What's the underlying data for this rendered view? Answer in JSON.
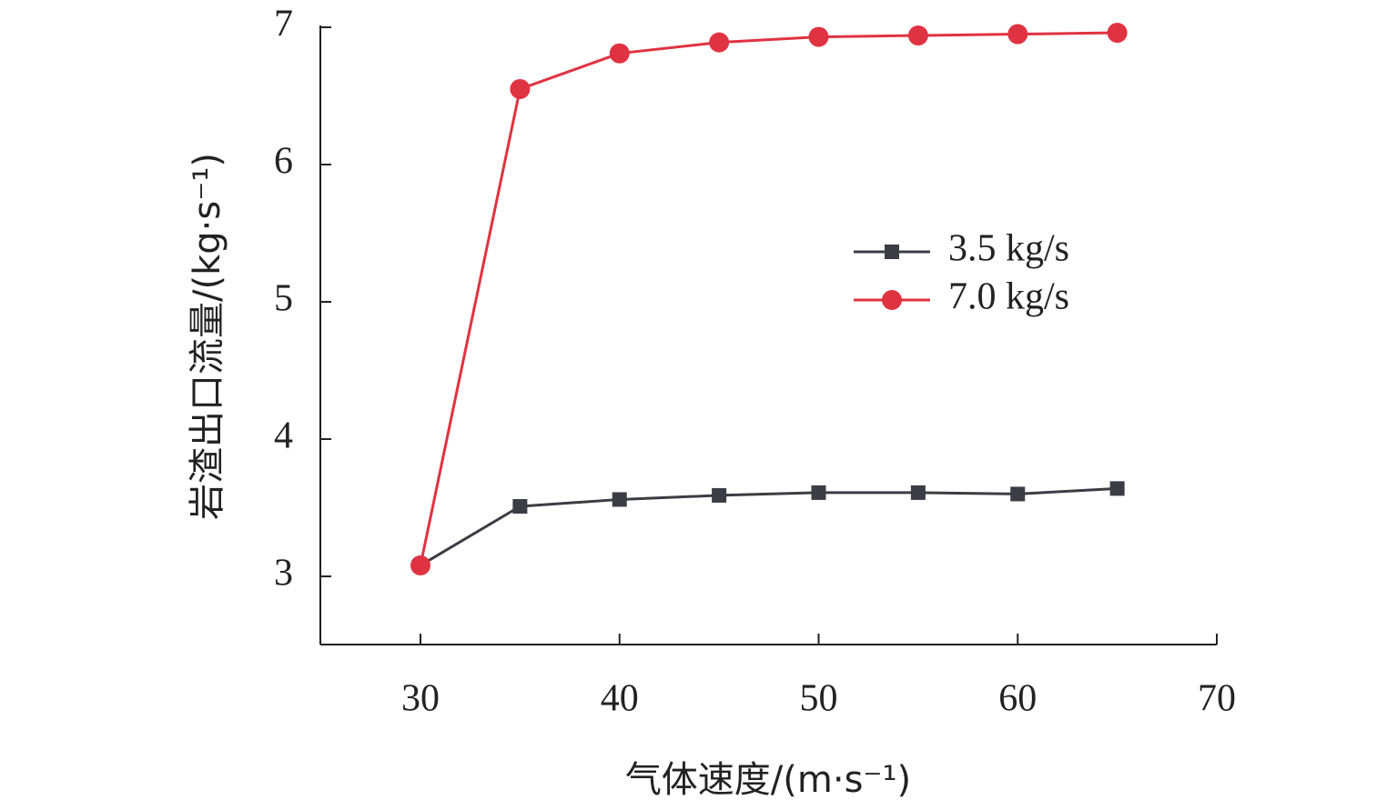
{
  "chart_data": {
    "type": "line",
    "xlabel": "气体速度/(m·s⁻¹)",
    "ylabel": "岩渣出口流量/(kg·s⁻¹)",
    "xlim": [
      25,
      70
    ],
    "ylim": [
      2.5,
      7
    ],
    "xticks": [
      30,
      40,
      50,
      60,
      70
    ],
    "yticks": [
      3,
      4,
      5,
      6,
      7
    ],
    "x": [
      30,
      35,
      40,
      45,
      50,
      55,
      60,
      65
    ],
    "series": [
      {
        "name": "3.5 kg/s",
        "marker": "square",
        "color": "#3c3c44",
        "values": [
          3.08,
          3.51,
          3.56,
          3.59,
          3.61,
          3.61,
          3.6,
          3.64
        ]
      },
      {
        "name": "7.0 kg/s",
        "marker": "circle",
        "color": "#e03341",
        "values": [
          3.08,
          6.55,
          6.81,
          6.89,
          6.93,
          6.94,
          6.95,
          6.96
        ]
      }
    ],
    "grid": false,
    "legend_position": "center-right"
  }
}
